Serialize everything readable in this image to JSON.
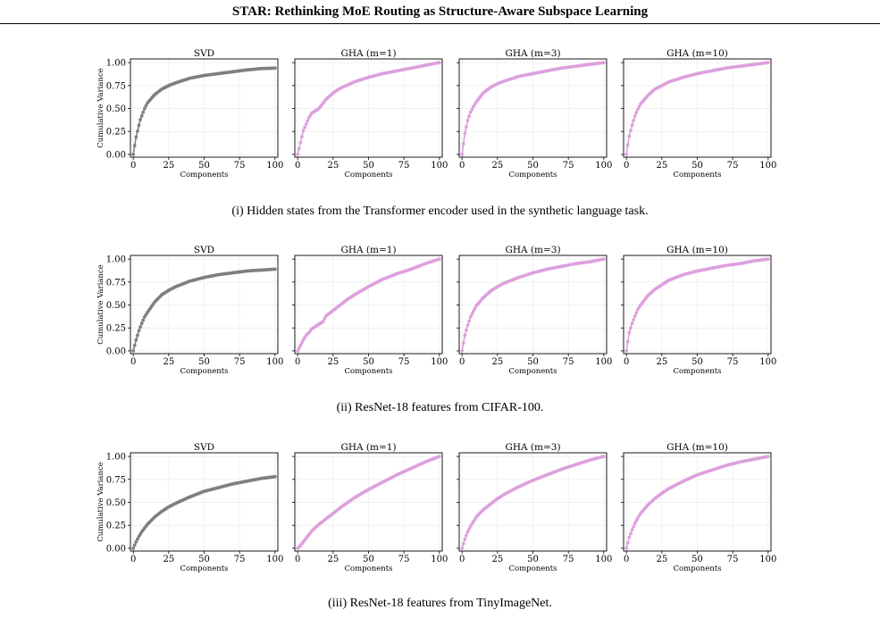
{
  "header": {
    "title": "STAR: Rethinking MoE Routing as Structure-Aware Subspace Learning"
  },
  "colors": {
    "svd": "#7f7f7f",
    "gha": "#dda0dd",
    "grid": "#ebebeb"
  },
  "panel_titles": [
    "SVD",
    "GHA (m=1)",
    "GHA (m=3)",
    "GHA (m=10)"
  ],
  "shared_axes": {
    "xlabel": "Components",
    "ylabel": "Cumulative Variance",
    "xticks": [
      "0",
      "25",
      "50",
      "75",
      "100"
    ],
    "yticks": [
      "0.00",
      "0.25",
      "0.50",
      "0.75",
      "1.00"
    ],
    "xlim": [
      -2,
      102
    ],
    "ylim": [
      -0.03,
      1.04
    ]
  },
  "rows": [
    {
      "caption": "(i) Hidden states from the Transformer encoder used in the synthetic language task."
    },
    {
      "caption": "(ii) ResNet-18 features from CIFAR-100."
    },
    {
      "caption": "(iii) ResNet-18 features from TinyImageNet."
    }
  ],
  "chart_data": [
    {
      "type": "scatter",
      "row": 1,
      "title": "SVD",
      "xlabel": "Components",
      "ylabel": "Cumulative Variance",
      "xlim": [
        0,
        100
      ],
      "ylim": [
        0,
        1
      ],
      "series": [
        {
          "x": [
            0,
            2,
            5,
            8,
            10,
            15,
            20,
            25,
            30,
            40,
            50,
            60,
            70,
            80,
            90,
            100
          ],
          "values": [
            0.0,
            0.19,
            0.38,
            0.5,
            0.56,
            0.65,
            0.71,
            0.75,
            0.78,
            0.83,
            0.86,
            0.88,
            0.9,
            0.92,
            0.935,
            0.94
          ]
        }
      ]
    },
    {
      "type": "scatter",
      "row": 1,
      "title": "GHA (m=1)",
      "xlabel": "Components",
      "ylabel": "",
      "xlim": [
        0,
        100
      ],
      "ylim": [
        0,
        1
      ],
      "series": [
        {
          "x": [
            0,
            2,
            4,
            6,
            8,
            10,
            12,
            15,
            20,
            25,
            30,
            40,
            50,
            60,
            70,
            80,
            90,
            100
          ],
          "values": [
            0.0,
            0.13,
            0.26,
            0.33,
            0.4,
            0.45,
            0.47,
            0.5,
            0.6,
            0.67,
            0.72,
            0.79,
            0.84,
            0.88,
            0.91,
            0.94,
            0.97,
            1.0
          ]
        }
      ]
    },
    {
      "type": "scatter",
      "row": 1,
      "title": "GHA (m=3)",
      "xlabel": "Components",
      "ylabel": "",
      "xlim": [
        0,
        100
      ],
      "ylim": [
        0,
        1
      ],
      "series": [
        {
          "x": [
            0,
            2,
            4,
            6,
            8,
            10,
            15,
            20,
            25,
            30,
            40,
            50,
            60,
            70,
            80,
            90,
            100
          ],
          "values": [
            0.0,
            0.23,
            0.37,
            0.46,
            0.52,
            0.57,
            0.67,
            0.73,
            0.77,
            0.8,
            0.85,
            0.88,
            0.91,
            0.94,
            0.96,
            0.98,
            1.0
          ]
        }
      ]
    },
    {
      "type": "scatter",
      "row": 1,
      "title": "GHA (m=10)",
      "xlabel": "Components",
      "ylabel": "",
      "xlim": [
        0,
        100
      ],
      "ylim": [
        0,
        1
      ],
      "series": [
        {
          "x": [
            0,
            2,
            4,
            6,
            8,
            10,
            15,
            20,
            25,
            30,
            40,
            50,
            60,
            70,
            80,
            90,
            100
          ],
          "values": [
            0.0,
            0.2,
            0.32,
            0.42,
            0.49,
            0.55,
            0.64,
            0.71,
            0.75,
            0.79,
            0.84,
            0.88,
            0.91,
            0.94,
            0.96,
            0.98,
            1.0
          ]
        }
      ]
    },
    {
      "type": "scatter",
      "row": 2,
      "title": "SVD",
      "xlabel": "Components",
      "ylabel": "Cumulative Variance",
      "xlim": [
        0,
        100
      ],
      "ylim": [
        0,
        1
      ],
      "series": [
        {
          "x": [
            0,
            2,
            4,
            6,
            8,
            10,
            15,
            20,
            25,
            30,
            40,
            50,
            60,
            70,
            80,
            90,
            100
          ],
          "values": [
            0.0,
            0.12,
            0.22,
            0.3,
            0.37,
            0.42,
            0.53,
            0.61,
            0.66,
            0.7,
            0.76,
            0.8,
            0.83,
            0.85,
            0.87,
            0.88,
            0.89
          ]
        }
      ]
    },
    {
      "type": "scatter",
      "row": 2,
      "title": "GHA (m=1)",
      "xlabel": "Components",
      "ylabel": "",
      "xlim": [
        0,
        100
      ],
      "ylim": [
        0,
        1
      ],
      "series": [
        {
          "x": [
            0,
            2,
            4,
            6,
            8,
            10,
            12,
            15,
            18,
            20,
            25,
            30,
            35,
            40,
            50,
            60,
            70,
            80,
            90,
            100
          ],
          "values": [
            0.0,
            0.06,
            0.12,
            0.17,
            0.2,
            0.24,
            0.26,
            0.29,
            0.32,
            0.38,
            0.44,
            0.5,
            0.56,
            0.61,
            0.7,
            0.78,
            0.84,
            0.89,
            0.95,
            1.0
          ]
        }
      ]
    },
    {
      "type": "scatter",
      "row": 2,
      "title": "GHA (m=3)",
      "xlabel": "Components",
      "ylabel": "",
      "xlim": [
        0,
        100
      ],
      "ylim": [
        0,
        1
      ],
      "series": [
        {
          "x": [
            0,
            2,
            4,
            6,
            8,
            10,
            15,
            20,
            25,
            30,
            40,
            50,
            60,
            70,
            80,
            90,
            100
          ],
          "values": [
            0.0,
            0.17,
            0.28,
            0.37,
            0.43,
            0.49,
            0.58,
            0.65,
            0.7,
            0.74,
            0.8,
            0.85,
            0.89,
            0.92,
            0.95,
            0.97,
            1.0
          ]
        }
      ]
    },
    {
      "type": "scatter",
      "row": 2,
      "title": "GHA (m=10)",
      "xlabel": "Components",
      "ylabel": "",
      "xlim": [
        0,
        100
      ],
      "ylim": [
        0,
        1
      ],
      "series": [
        {
          "x": [
            0,
            2,
            4,
            6,
            8,
            10,
            15,
            20,
            25,
            30,
            40,
            50,
            60,
            70,
            80,
            90,
            100
          ],
          "values": [
            0.0,
            0.2,
            0.3,
            0.38,
            0.45,
            0.5,
            0.6,
            0.67,
            0.72,
            0.77,
            0.83,
            0.87,
            0.9,
            0.93,
            0.95,
            0.98,
            1.0
          ]
        }
      ]
    },
    {
      "type": "scatter",
      "row": 3,
      "title": "SVD",
      "xlabel": "Components",
      "ylabel": "Cumulative Variance",
      "xlim": [
        0,
        100
      ],
      "ylim": [
        0,
        1
      ],
      "series": [
        {
          "x": [
            0,
            2,
            4,
            6,
            8,
            10,
            15,
            20,
            25,
            30,
            40,
            50,
            60,
            70,
            80,
            90,
            100
          ],
          "values": [
            0.0,
            0.07,
            0.13,
            0.18,
            0.22,
            0.26,
            0.34,
            0.4,
            0.45,
            0.49,
            0.56,
            0.62,
            0.66,
            0.7,
            0.73,
            0.76,
            0.78
          ]
        }
      ]
    },
    {
      "type": "scatter",
      "row": 3,
      "title": "GHA (m=1)",
      "xlabel": "Components",
      "ylabel": "",
      "xlim": [
        0,
        100
      ],
      "ylim": [
        0,
        1
      ],
      "series": [
        {
          "x": [
            0,
            2,
            4,
            6,
            8,
            10,
            15,
            20,
            25,
            30,
            40,
            50,
            60,
            70,
            80,
            90,
            100
          ],
          "values": [
            0.0,
            0.03,
            0.07,
            0.11,
            0.15,
            0.19,
            0.26,
            0.32,
            0.38,
            0.44,
            0.55,
            0.64,
            0.72,
            0.8,
            0.87,
            0.94,
            1.0
          ]
        }
      ]
    },
    {
      "type": "scatter",
      "row": 3,
      "title": "GHA (m=3)",
      "xlabel": "Components",
      "ylabel": "",
      "xlim": [
        0,
        100
      ],
      "ylim": [
        0,
        1
      ],
      "series": [
        {
          "x": [
            0,
            2,
            4,
            6,
            8,
            10,
            15,
            20,
            25,
            30,
            40,
            50,
            60,
            70,
            80,
            90,
            100
          ],
          "values": [
            0.0,
            0.1,
            0.18,
            0.24,
            0.29,
            0.34,
            0.42,
            0.48,
            0.54,
            0.59,
            0.67,
            0.74,
            0.8,
            0.86,
            0.91,
            0.96,
            1.0
          ]
        }
      ]
    },
    {
      "type": "scatter",
      "row": 3,
      "title": "GHA (m=10)",
      "xlabel": "Components",
      "ylabel": "",
      "xlim": [
        0,
        100
      ],
      "ylim": [
        0,
        1
      ],
      "series": [
        {
          "x": [
            0,
            2,
            4,
            6,
            8,
            10,
            15,
            20,
            25,
            30,
            40,
            50,
            60,
            70,
            80,
            90,
            100
          ],
          "values": [
            0.0,
            0.12,
            0.2,
            0.27,
            0.33,
            0.38,
            0.47,
            0.54,
            0.6,
            0.65,
            0.73,
            0.8,
            0.85,
            0.9,
            0.94,
            0.97,
            1.0
          ]
        }
      ]
    }
  ]
}
